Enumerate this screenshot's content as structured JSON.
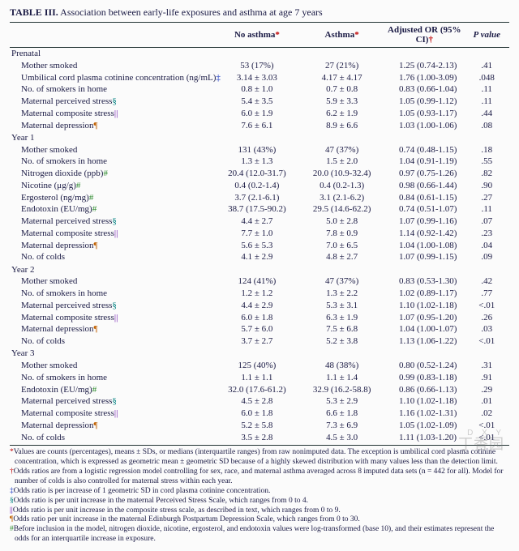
{
  "title_prefix": "TABLE III.",
  "title_rest": " Association between early-life exposures and asthma at age 7 years",
  "columns": {
    "label": "",
    "no_asthma": "No asthma",
    "asthma": "Asthma",
    "or": "Adjusted OR (95% CI)",
    "p": "P value"
  },
  "header_markers": {
    "no_asthma": "*",
    "asthma": "*",
    "or": "†"
  },
  "sections": [
    {
      "name": "Prenatal",
      "rows": [
        {
          "label": "Mother smoked",
          "na": "53 (17%)",
          "as": "27 (21%)",
          "or": "1.25 (0.74-2.13)",
          "p": ".41"
        },
        {
          "label": "Umbilical cord plasma cotinine concentration (ng/mL)",
          "mark": "‡",
          "mclass": "blue",
          "na": "3.14 ± 3.03",
          "as": "4.17 ± 4.17",
          "or": "1.76 (1.00-3.09)",
          "p": ".048"
        },
        {
          "label": "No. of smokers in home",
          "na": "0.8 ± 1.0",
          "as": "0.7 ± 0.8",
          "or": "0.83 (0.66-1.04)",
          "p": ".11"
        },
        {
          "label": "Maternal perceived stress",
          "mark": "§",
          "mclass": "teal",
          "na": "5.4 ± 3.5",
          "as": "5.9 ± 3.3",
          "or": "1.05 (0.99-1.12)",
          "p": ".11"
        },
        {
          "label": "Maternal composite stress",
          "mark": "||",
          "mclass": "purp",
          "na": "6.0 ± 1.9",
          "as": "6.2 ± 1.9",
          "or": "1.05 (0.93-1.17)",
          "p": ".44"
        },
        {
          "label": "Maternal depression",
          "mark": "¶",
          "mclass": "orng",
          "na": "7.6 ± 6.1",
          "as": "8.9 ± 6.6",
          "or": "1.03 (1.00-1.06)",
          "p": ".08"
        }
      ]
    },
    {
      "name": "Year 1",
      "rows": [
        {
          "label": "Mother smoked",
          "na": "131 (43%)",
          "as": "47 (37%)",
          "or": "0.74 (0.48-1.15)",
          "p": ".18"
        },
        {
          "label": "No. of smokers in home",
          "na": "1.3 ± 1.3",
          "as": "1.5 ± 2.0",
          "or": "1.04 (0.91-1.19)",
          "p": ".55"
        },
        {
          "label": "Nitrogen dioxide (ppb)",
          "mark": "#",
          "mclass": "grn",
          "na": "20.4 (12.0-31.7)",
          "as": "20.0 (10.9-32.4)",
          "or": "0.97 (0.75-1.26)",
          "p": ".82"
        },
        {
          "label": "Nicotine (μg/g)",
          "mark": "#",
          "mclass": "grn",
          "na": "0.4 (0.2-1.4)",
          "as": "0.4 (0.2-1.3)",
          "or": "0.98 (0.66-1.44)",
          "p": ".90"
        },
        {
          "label": "Ergosterol (ng/mg)",
          "mark": "#",
          "mclass": "grn",
          "na": "3.7 (2.1-6.1)",
          "as": "3.1 (2.1-6.2)",
          "or": "0.84 (0.61-1.15)",
          "p": ".27"
        },
        {
          "label": "Endotoxin (EU/mg)",
          "mark": "#",
          "mclass": "grn",
          "na": "38.7 (17.5-90.2)",
          "as": "29.5 (14.6-62.2)",
          "or": "0.74 (0.51-1.07)",
          "p": ".11"
        },
        {
          "label": "Maternal perceived stress",
          "mark": "§",
          "mclass": "teal",
          "na": "4.4 ± 2.7",
          "as": "5.0 ± 2.8",
          "or": "1.07 (0.99-1.16)",
          "p": ".07"
        },
        {
          "label": "Maternal composite stress",
          "mark": "||",
          "mclass": "purp",
          "na": "7.7 ± 1.0",
          "as": "7.8 ± 0.9",
          "or": "1.14 (0.92-1.42)",
          "p": ".23"
        },
        {
          "label": "Maternal depression",
          "mark": "¶",
          "mclass": "orng",
          "na": "5.6 ± 5.3",
          "as": "7.0 ± 6.5",
          "or": "1.04 (1.00-1.08)",
          "p": ".04"
        },
        {
          "label": "No. of colds",
          "na": "4.1 ± 2.9",
          "as": "4.8 ± 2.7",
          "or": "1.07 (0.99-1.15)",
          "p": ".09"
        }
      ]
    },
    {
      "name": "Year 2",
      "rows": [
        {
          "label": "Mother smoked",
          "na": "124 (41%)",
          "as": "47 (37%)",
          "or": "0.83 (0.53-1.30)",
          "p": ".42"
        },
        {
          "label": "No. of smokers in home",
          "na": "1.2 ± 1.2",
          "as": "1.3 ± 2.2",
          "or": "1.02 (0.89-1.17)",
          "p": ".77"
        },
        {
          "label": "Maternal perceived stress",
          "mark": "§",
          "mclass": "teal",
          "na": "4.4 ± 2.9",
          "as": "5.3 ± 3.1",
          "or": "1.10 (1.02-1.18)",
          "p": "<.01"
        },
        {
          "label": "Maternal composite stress",
          "mark": "||",
          "mclass": "purp",
          "na": "6.0 ± 1.8",
          "as": "6.3 ± 1.9",
          "or": "1.07 (0.95-1.20)",
          "p": ".26"
        },
        {
          "label": "Maternal depression",
          "mark": "¶",
          "mclass": "orng",
          "na": "5.7 ± 6.0",
          "as": "7.5 ± 6.8",
          "or": "1.04 (1.00-1.07)",
          "p": ".03"
        },
        {
          "label": "No. of colds",
          "na": "3.7 ± 2.7",
          "as": "5.2 ± 3.8",
          "or": "1.13 (1.06-1.22)",
          "p": "<.01"
        }
      ]
    },
    {
      "name": "Year 3",
      "rows": [
        {
          "label": "Mother smoked",
          "na": "125 (40%)",
          "as": "48 (38%)",
          "or": "0.80 (0.52-1.24)",
          "p": ".31"
        },
        {
          "label": "No. of smokers in home",
          "na": "1.1 ± 1.1",
          "as": "1.1 ± 1.4",
          "or": "0.99 (0.83-1.18)",
          "p": ".91"
        },
        {
          "label": "Endotoxin (EU/mg)",
          "mark": "#",
          "mclass": "grn",
          "na": "32.0 (17.6-61.2)",
          "as": "32.9 (16.2-58.8)",
          "or": "0.86 (0.66-1.13)",
          "p": ".29"
        },
        {
          "label": "Maternal perceived stress",
          "mark": "§",
          "mclass": "teal",
          "na": "4.5 ± 2.8",
          "as": "5.3 ± 2.9",
          "or": "1.10 (1.02-1.18)",
          "p": ".01"
        },
        {
          "label": "Maternal composite stress",
          "mark": "||",
          "mclass": "purp",
          "na": "6.0 ± 1.8",
          "as": "6.6 ± 1.8",
          "or": "1.16 (1.02-1.31)",
          "p": ".02"
        },
        {
          "label": "Maternal depression",
          "mark": "¶",
          "mclass": "orng",
          "na": "5.2 ± 5.8",
          "as": "7.3 ± 6.9",
          "or": "1.05 (1.02-1.09)",
          "p": "<.01"
        },
        {
          "label": "No. of colds",
          "na": "3.5 ± 2.8",
          "as": "4.5 ± 3.0",
          "or": "1.11 (1.03-1.20)",
          "p": "<.01"
        }
      ]
    }
  ],
  "footnotes": [
    {
      "mark": "*",
      "mclass": "red",
      "text": "Values are counts (percentages), means ± SDs, or medians (interquartile ranges) from raw nonimputed data. The exception is umbilical cord plasma cotinine concentration, which is expressed as geometric mean ± geometric SD because of a highly skewed distribution with many values less than the detection limit."
    },
    {
      "mark": "†",
      "mclass": "red",
      "text": "Odds ratios are from a logistic regression model controlling for sex, race, and maternal asthma averaged across 8 imputed data sets (n = 442 for all). Model for number of colds is also controlled for maternal stress within each year."
    },
    {
      "mark": "‡",
      "mclass": "blue",
      "text": "Odds ratio is per increase of 1 geometric SD in cord plasma cotinine concentration."
    },
    {
      "mark": "§",
      "mclass": "teal",
      "text": "Odds ratio is per unit increase in the maternal Perceived Stress Scale, which ranges from 0 to 4."
    },
    {
      "mark": "||",
      "mclass": "purp",
      "text": "Odds ratio is per unit increase in the composite stress scale, as described in text, which ranges from 0 to 9."
    },
    {
      "mark": "¶",
      "mclass": "orng",
      "text": "Odds ratio per unit increase in the maternal Edinburgh Postpartum Depression Scale, which ranges from 0 to 30."
    },
    {
      "mark": "#",
      "mclass": "grn",
      "text": "Before inclusion in the model, nitrogen dioxide, nicotine, ergosterol, and endotoxin values were log-transformed (base 10), and their estimates represent the odds for an interquartile increase in exposure."
    }
  ],
  "watermark": {
    "small": "D X Y",
    "big": "丁香园"
  }
}
